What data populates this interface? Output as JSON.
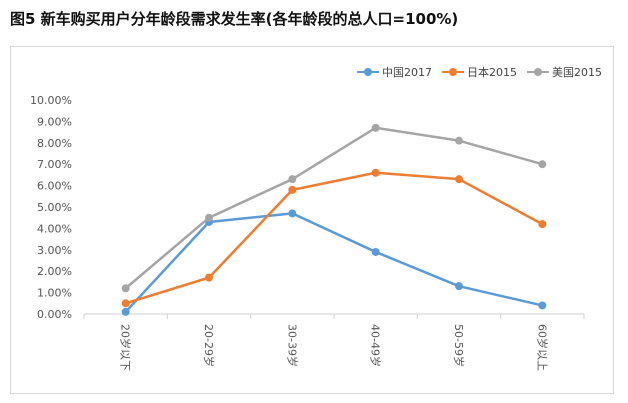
{
  "figure": {
    "title": "图5  新车购买用户分年龄段需求发生率(各年龄段的总人口=100%)"
  },
  "chart_data": {
    "type": "line",
    "title": "",
    "xlabel": "",
    "ylabel": "",
    "categories": [
      "20岁以下",
      "20-29岁",
      "30-39岁",
      "40-49岁",
      "50-59岁",
      "60岁以上"
    ],
    "ylim": [
      0,
      10
    ],
    "y_ticks": [
      "0.00%",
      "1.00%",
      "2.00%",
      "3.00%",
      "4.00%",
      "5.00%",
      "6.00%",
      "7.00%",
      "8.00%",
      "9.00%",
      "10.00%"
    ],
    "grid": false,
    "legend_position": "top-right",
    "series": [
      {
        "name": "中国2017",
        "color": "#5b9bd5",
        "values": [
          0.1,
          4.3,
          4.7,
          2.9,
          1.3,
          0.4
        ]
      },
      {
        "name": "日本2015",
        "color": "#ed7d31",
        "values": [
          0.5,
          1.7,
          5.8,
          6.6,
          6.3,
          4.2
        ]
      },
      {
        "name": "美国2015",
        "color": "#a5a5a5",
        "values": [
          1.2,
          4.5,
          6.3,
          8.7,
          8.1,
          7.0
        ]
      }
    ]
  }
}
